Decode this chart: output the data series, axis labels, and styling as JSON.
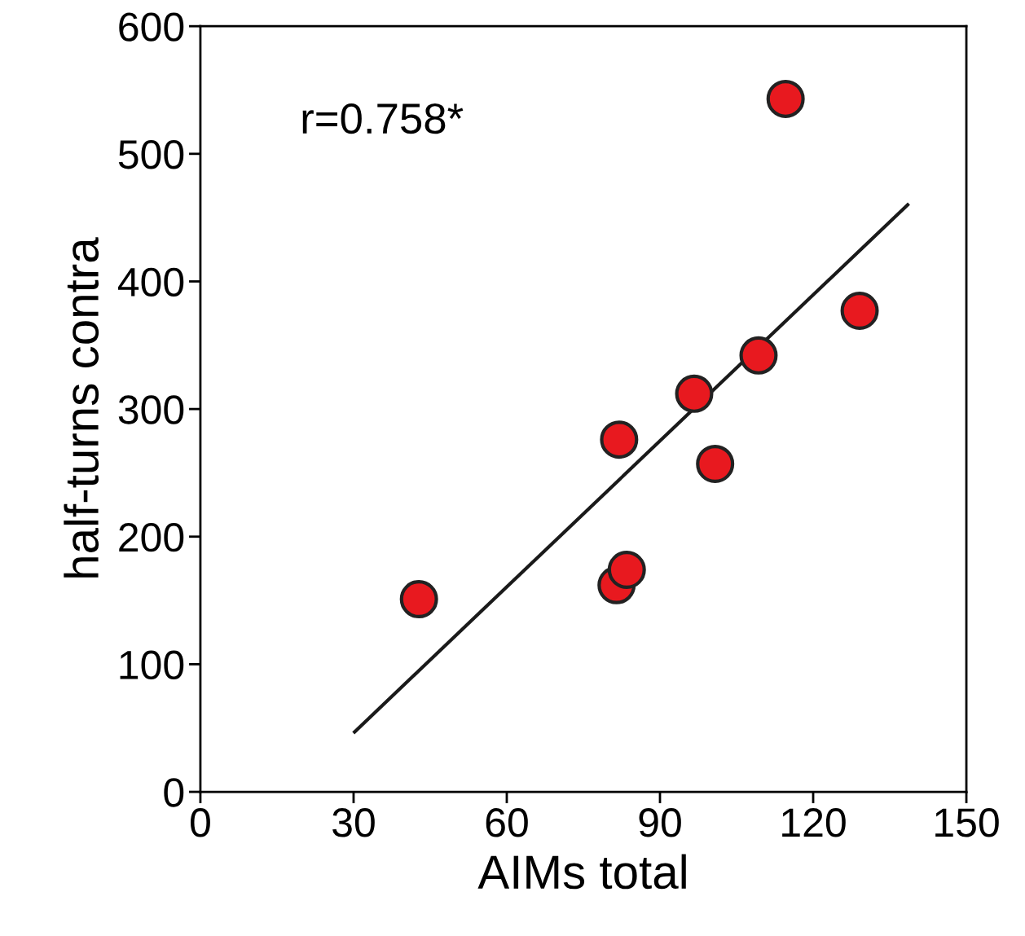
{
  "chart_data": {
    "type": "scatter",
    "xlabel": "AIMs total",
    "ylabel": "half-turns contra",
    "annotations": [
      "r=0.758*"
    ],
    "xlim": [
      0,
      150
    ],
    "ylim": [
      0,
      600
    ],
    "xticks": [
      0,
      30,
      60,
      90,
      120,
      150
    ],
    "yticks": [
      0,
      100,
      200,
      300,
      400,
      500,
      600
    ],
    "grid": false,
    "series": [
      {
        "type": "scatter",
        "marker": "circle",
        "color": "#e8191f",
        "x": [
          42.8,
          82.0,
          81.5,
          83.5,
          96.7,
          100.8,
          109.3,
          114.6,
          129.1
        ],
        "values": [
          151,
          276,
          162,
          174,
          312,
          257,
          342,
          543,
          377
        ]
      },
      {
        "type": "line",
        "color": "#1a1a1a",
        "x": [
          30.2,
          138.5
        ],
        "values": [
          47,
          460
        ]
      }
    ]
  }
}
